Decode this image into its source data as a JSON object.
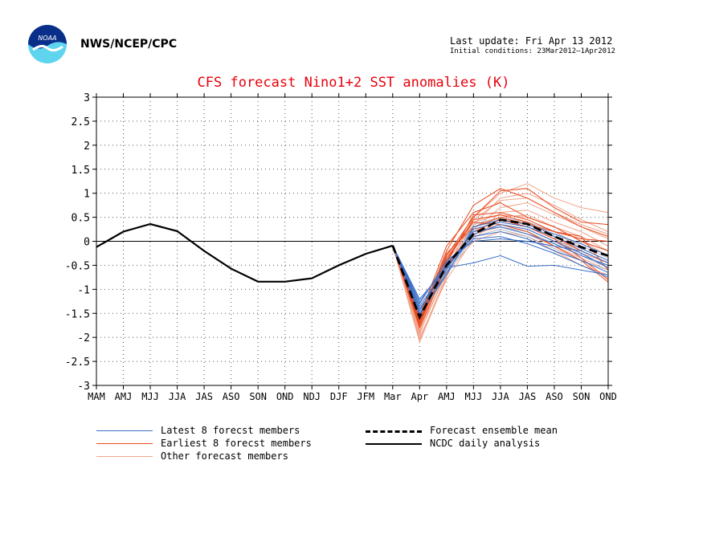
{
  "header": {
    "agency": "NWS/NCEP/CPC",
    "last_update": "Last update: Fri Apr 13 2012",
    "initial_conditions": "Initial conditions: 23Mar2012–1Apr2012",
    "logo_text": "NOAA"
  },
  "colors": {
    "title": "#e8000b",
    "latest": "#3a6fc8",
    "earliest": "#e8491d",
    "other": "#f2a48a",
    "other_alt": "#b0b8c8",
    "mean": "#000000",
    "analysis": "#000000"
  },
  "chart_data": {
    "type": "line",
    "title": "CFS forecast Nino1+2 SST anomalies (K)",
    "categories": [
      "MAM",
      "AMJ",
      "MJJ",
      "JJA",
      "JAS",
      "ASO",
      "SON",
      "OND",
      "NDJ",
      "DJF",
      "JFM",
      "Mar",
      "Apr",
      "AMJ",
      "MJJ",
      "JJA",
      "JAS",
      "ASO",
      "SON",
      "OND"
    ],
    "ylim": [
      -3,
      3
    ],
    "yticks": [
      "3",
      "2.5",
      "2",
      "1.5",
      "1",
      "0.5",
      "0",
      "-0.5",
      "-1",
      "-1.5",
      "-2",
      "-2.5",
      "-3"
    ],
    "grid": true,
    "zero_line": true,
    "legend": [
      {
        "label": "Latest 8 forecst members",
        "style": "latest"
      },
      {
        "label": "Earliest 8 forecst members",
        "style": "earliest"
      },
      {
        "label": "Other forecast members",
        "style": "other"
      },
      {
        "label": "Forecast ensemble mean",
        "style": "mean"
      },
      {
        "label": "NCDC daily analysis",
        "style": "analysis"
      }
    ],
    "analysis": {
      "x": [
        0,
        1,
        2,
        3,
        4,
        5,
        6,
        7,
        8,
        9,
        10,
        11
      ],
      "values": [
        -0.12,
        0.2,
        0.36,
        0.21,
        -0.2,
        -0.57,
        -0.84,
        -0.84,
        -0.77,
        -0.5,
        -0.26,
        -0.09
      ]
    },
    "ensemble_mean": {
      "x": [
        11,
        12,
        13,
        14,
        15,
        16,
        17,
        18,
        19
      ],
      "values": [
        -0.09,
        -1.58,
        -0.5,
        0.15,
        0.45,
        0.36,
        0.1,
        -0.12,
        -0.3
      ]
    },
    "latest_members": {
      "x": [
        11,
        12,
        13,
        14,
        15,
        16,
        17,
        18,
        19
      ],
      "values": [
        [
          -0.09,
          -1.2,
          -0.55,
          -0.45,
          -0.3,
          -0.52,
          -0.5,
          -0.6,
          -0.7
        ],
        [
          -0.09,
          -1.3,
          -0.4,
          0.0,
          0.05,
          0.0,
          -0.1,
          -0.2,
          -0.45
        ],
        [
          -0.09,
          -1.35,
          -0.55,
          0.2,
          0.3,
          0.15,
          -0.05,
          -0.3,
          -0.5
        ],
        [
          -0.09,
          -1.4,
          -0.6,
          0.25,
          0.4,
          0.3,
          0.1,
          -0.15,
          -0.4
        ],
        [
          -0.09,
          -1.45,
          -0.45,
          0.1,
          0.2,
          0.05,
          -0.2,
          -0.4,
          -0.65
        ],
        [
          -0.09,
          -1.5,
          -0.7,
          0.3,
          0.45,
          0.35,
          0.15,
          -0.05,
          -0.3
        ],
        [
          -0.09,
          -1.25,
          -0.5,
          0.05,
          0.1,
          -0.05,
          -0.25,
          -0.5,
          -0.75
        ],
        [
          -0.09,
          -1.55,
          -0.65,
          0.15,
          0.35,
          0.25,
          0.0,
          -0.25,
          -0.55
        ]
      ]
    },
    "earliest_members": {
      "x": [
        11,
        12,
        13,
        14,
        15,
        16,
        17,
        18,
        19
      ],
      "values": [
        [
          -0.09,
          -1.6,
          -0.2,
          0.75,
          1.1,
          0.9,
          0.6,
          0.3,
          0.1
        ],
        [
          -0.09,
          -1.7,
          -0.3,
          0.5,
          1.05,
          1.1,
          0.7,
          0.4,
          0.35
        ],
        [
          -0.09,
          -1.55,
          -0.1,
          0.6,
          0.8,
          0.5,
          0.3,
          0.0,
          -0.2
        ],
        [
          -0.09,
          -1.75,
          -0.4,
          0.45,
          0.55,
          0.4,
          0.1,
          -0.2,
          -0.45
        ],
        [
          -0.09,
          -1.65,
          -0.25,
          0.3,
          0.5,
          0.35,
          0.2,
          0.1,
          -0.6
        ],
        [
          -0.09,
          -1.8,
          -0.5,
          0.2,
          0.45,
          0.3,
          0.05,
          -0.35,
          -0.8
        ],
        [
          -0.09,
          -1.6,
          -0.35,
          0.4,
          0.35,
          0.2,
          -0.1,
          -0.4,
          -0.85
        ],
        [
          -0.09,
          -1.7,
          -0.45,
          0.55,
          0.6,
          0.45,
          0.2,
          0.05,
          0.0
        ]
      ]
    },
    "other_members": {
      "x": [
        11,
        12,
        13,
        14,
        15,
        16,
        17,
        18,
        19
      ],
      "values": [
        [
          -0.09,
          -1.9,
          -0.6,
          0.5,
          1.0,
          1.2,
          0.9,
          0.7,
          0.6
        ],
        [
          -0.09,
          -2.05,
          -0.7,
          0.35,
          0.9,
          1.0,
          0.75,
          0.45,
          0.2
        ],
        [
          -0.09,
          -1.95,
          -0.4,
          0.25,
          0.7,
          0.8,
          0.55,
          0.3,
          0.05
        ],
        [
          -0.09,
          -1.85,
          -0.5,
          0.1,
          0.6,
          0.65,
          0.4,
          0.2,
          -0.1
        ],
        [
          -0.09,
          -2.0,
          -0.8,
          0.05,
          0.5,
          0.55,
          0.3,
          0.0,
          -0.3
        ],
        [
          -0.09,
          -1.75,
          -0.35,
          0.3,
          0.45,
          0.4,
          0.2,
          -0.15,
          -0.4
        ],
        [
          -0.09,
          -1.8,
          -0.55,
          0.2,
          0.35,
          0.25,
          0.0,
          -0.3,
          -0.55
        ],
        [
          -0.09,
          -1.65,
          -0.45,
          0.15,
          0.3,
          0.15,
          -0.1,
          -0.35,
          -0.6
        ],
        [
          -0.09,
          -1.9,
          -0.65,
          0.0,
          0.2,
          0.1,
          -0.2,
          -0.5,
          -0.7
        ],
        [
          -0.09,
          -1.7,
          -0.3,
          0.4,
          0.55,
          0.5,
          0.3,
          0.1,
          -0.2
        ],
        [
          -0.09,
          -2.1,
          -0.75,
          0.45,
          0.85,
          0.9,
          0.6,
          0.35,
          0.15
        ],
        [
          -0.09,
          -1.6,
          -0.5,
          0.25,
          0.4,
          0.3,
          0.05,
          -0.25,
          -0.45
        ]
      ]
    },
    "other_members_grey": {
      "x": [
        11,
        12,
        13,
        14,
        15,
        16,
        17,
        18,
        19
      ],
      "values": [
        [
          -0.09,
          -1.45,
          -0.6,
          0.35,
          0.5,
          0.4,
          0.2,
          -0.1,
          -0.35
        ],
        [
          -0.09,
          -1.5,
          -0.5,
          0.2,
          0.3,
          0.2,
          -0.05,
          -0.3,
          -0.55
        ],
        [
          -0.09,
          -1.6,
          -0.7,
          0.1,
          0.25,
          0.1,
          -0.15,
          -0.4,
          -0.6
        ],
        [
          -0.09,
          -1.55,
          -0.55,
          0.3,
          0.45,
          0.3,
          0.05,
          -0.2,
          -0.45
        ]
      ]
    }
  }
}
